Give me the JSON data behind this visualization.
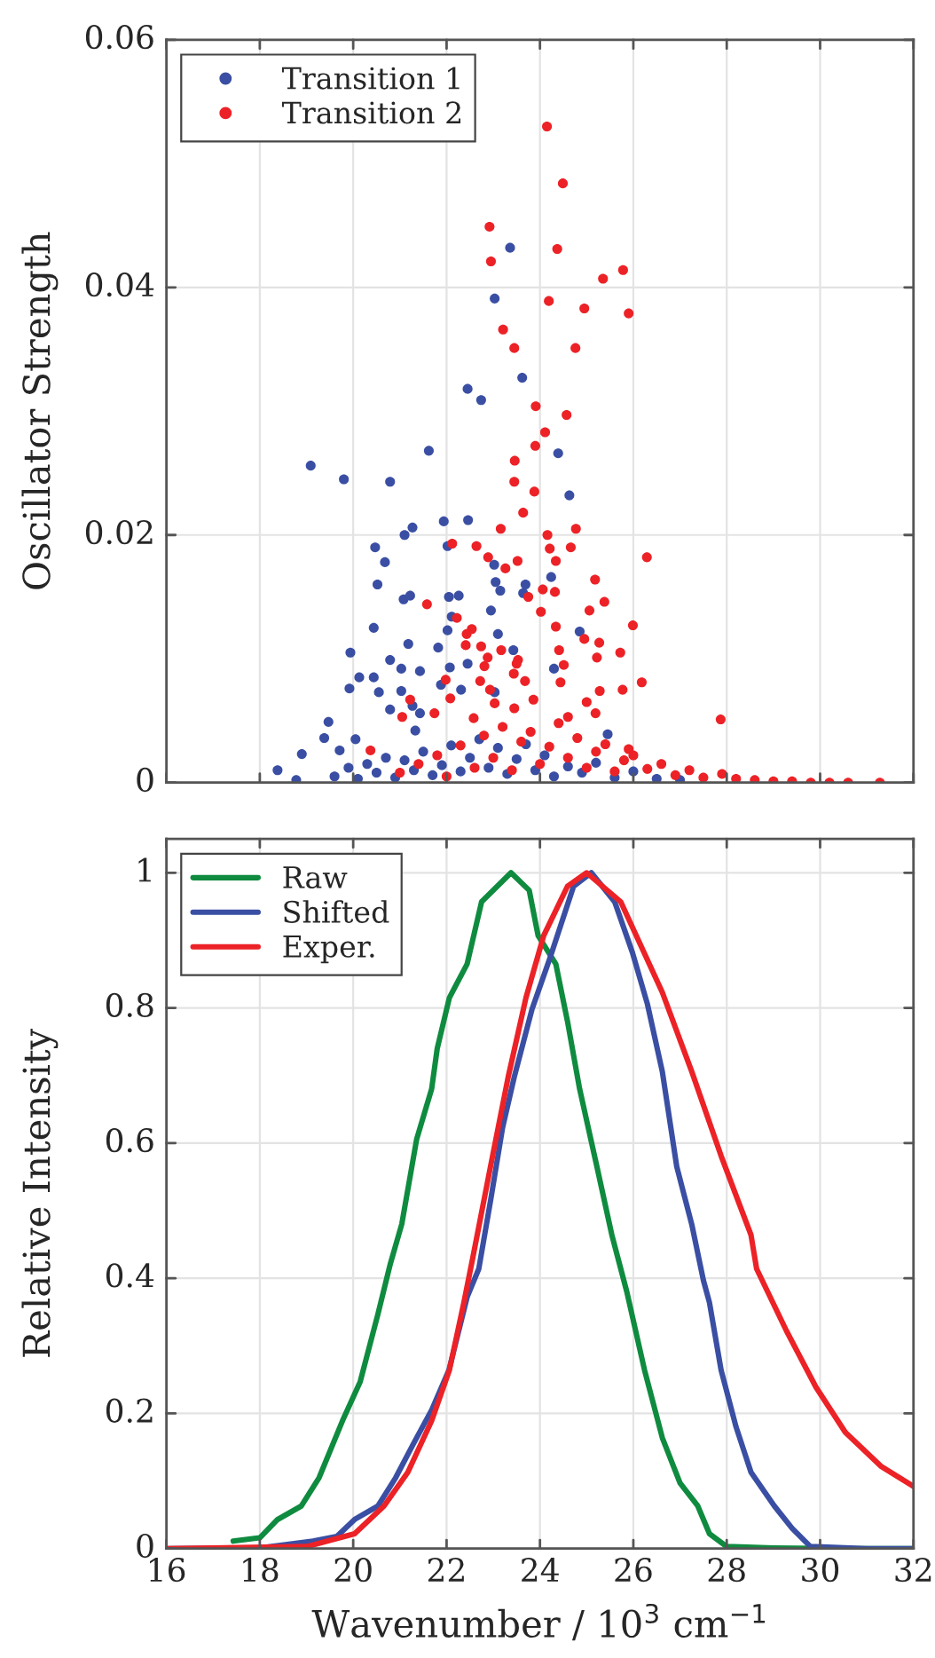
{
  "chart_data": [
    {
      "type": "scatter",
      "ylabel": "Oscillator Strength",
      "xlim": [
        16,
        32
      ],
      "xticks": [
        16,
        18,
        20,
        22,
        24,
        26,
        28,
        30,
        32
      ],
      "ylim": [
        0,
        0.06
      ],
      "yticks": [
        0,
        0.02,
        0.04,
        0.06
      ],
      "tick_labels": "y",
      "grid": true,
      "legend": "top left",
      "marker": "circle",
      "series": [
        {
          "name": "Transition 1",
          "color": "#3a4fa3",
          "x": [
            23.36,
            23.03,
            23.62,
            22.45,
            22.74,
            19.09,
            19.8,
            20.79,
            21.62,
            24.39,
            24.63,
            22.46,
            21.94,
            21.27,
            21.1,
            20.47,
            22.02,
            20.68,
            23.02,
            24.24,
            20.52,
            23.05,
            23.15,
            23.69,
            23.64,
            21.08,
            21.22,
            22.05,
            22.26,
            22.95,
            22.11,
            20.44,
            22.02,
            24.85,
            23.1,
            19.94,
            21.18,
            21.82,
            23.43,
            20.79,
            21.03,
            21.43,
            22.07,
            22.45,
            24.3,
            20.13,
            20.44,
            21.88,
            19.92,
            20.55,
            21.03,
            22.31,
            21.27,
            23.03,
            20.79,
            19.47,
            21.43,
            21.33,
            19.38,
            20.05,
            25.45,
            18.9,
            19.71,
            18.38,
            18.78,
            19.6,
            19.9,
            20.1,
            20.3,
            20.5,
            20.7,
            20.9,
            21.1,
            21.3,
            21.5,
            21.7,
            21.9,
            22.1,
            22.3,
            22.5,
            22.7,
            22.9,
            23.1,
            23.3,
            23.5,
            23.7,
            23.9,
            24.1,
            24.3,
            24.6,
            24.9,
            25.2,
            25.6,
            26.0,
            26.5,
            27.0
          ],
          "values": [
            0.0432,
            0.0391,
            0.0327,
            0.0318,
            0.0309,
            0.0256,
            0.0245,
            0.0243,
            0.0268,
            0.0266,
            0.0232,
            0.0212,
            0.0211,
            0.0206,
            0.02,
            0.019,
            0.0191,
            0.0178,
            0.0176,
            0.0166,
            0.016,
            0.0162,
            0.0155,
            0.016,
            0.0153,
            0.0148,
            0.0151,
            0.015,
            0.0151,
            0.0139,
            0.0134,
            0.0125,
            0.0123,
            0.0122,
            0.012,
            0.0105,
            0.0112,
            0.0109,
            0.0107,
            0.0099,
            0.0092,
            0.009,
            0.0093,
            0.0096,
            0.0092,
            0.0085,
            0.0085,
            0.0079,
            0.0076,
            0.0073,
            0.0074,
            0.0075,
            0.0062,
            0.0073,
            0.0059,
            0.0049,
            0.0056,
            0.0042,
            0.0036,
            0.0035,
            0.0039,
            0.0023,
            0.0026,
            0.001,
            0.0002,
            0.0005,
            0.0012,
            0.0003,
            0.0015,
            0.0008,
            0.002,
            0.0004,
            0.0018,
            0.001,
            0.0025,
            0.0006,
            0.0014,
            0.003,
            0.0009,
            0.002,
            0.0035,
            0.0012,
            0.0028,
            0.0007,
            0.0019,
            0.0031,
            0.001,
            0.0022,
            0.0005,
            0.0013,
            0.0008,
            0.0016,
            0.0004,
            0.0009,
            0.0003,
            0.0002
          ]
        },
        {
          "name": "Transition 2",
          "color": "#ec2227",
          "x": [
            24.15,
            24.49,
            22.92,
            24.37,
            22.95,
            25.78,
            25.35,
            24.19,
            24.95,
            25.9,
            23.21,
            23.45,
            24.76,
            23.91,
            24.57,
            24.11,
            23.9,
            23.46,
            23.45,
            23.88,
            23.64,
            23.16,
            24.77,
            24.16,
            22.12,
            22.64,
            24.21,
            24.66,
            26.29,
            22.89,
            23.26,
            23.52,
            24.34,
            23.75,
            24.06,
            24.32,
            25.18,
            21.58,
            25.38,
            25.06,
            24.02,
            22.22,
            25.99,
            24.34,
            22.54,
            22.43,
            24.95,
            25.27,
            22.41,
            22.74,
            23.17,
            24.41,
            25.72,
            25.22,
            22.88,
            23.53,
            22.81,
            23.5,
            24.51,
            23.44,
            21.98,
            22.72,
            23.68,
            24.44,
            26.18,
            22.93,
            25.28,
            25.77,
            21.22,
            22.08,
            23.86,
            25.0,
            23.03,
            23.45,
            25.19,
            21.05,
            21.74,
            22.58,
            24.6,
            27.87,
            20.37,
            25.9,
            21.0,
            21.4,
            21.8,
            22.0,
            22.3,
            22.6,
            22.8,
            23.0,
            23.2,
            23.4,
            23.6,
            23.8,
            24.0,
            24.2,
            24.4,
            24.6,
            24.8,
            25.0,
            25.2,
            25.4,
            25.6,
            25.8,
            26.0,
            26.3,
            26.6,
            26.9,
            27.2,
            27.5,
            27.9,
            28.2,
            28.6,
            29.0,
            29.4,
            29.8,
            30.2,
            30.6,
            31.28
          ],
          "values": [
            0.053,
            0.0484,
            0.0449,
            0.0431,
            0.0421,
            0.0414,
            0.0407,
            0.0389,
            0.0383,
            0.0379,
            0.0366,
            0.0351,
            0.0351,
            0.0304,
            0.0297,
            0.0283,
            0.0272,
            0.026,
            0.0243,
            0.0235,
            0.0218,
            0.0205,
            0.0205,
            0.02,
            0.0193,
            0.0191,
            0.0189,
            0.019,
            0.0182,
            0.0182,
            0.0173,
            0.0179,
            0.0179,
            0.015,
            0.0156,
            0.0154,
            0.0164,
            0.0144,
            0.0146,
            0.0139,
            0.0138,
            0.0133,
            0.0127,
            0.0126,
            0.0124,
            0.012,
            0.0116,
            0.0113,
            0.0111,
            0.011,
            0.0107,
            0.0107,
            0.0105,
            0.0101,
            0.0101,
            0.0099,
            0.0094,
            0.0096,
            0.0095,
            0.0088,
            0.0083,
            0.0082,
            0.0082,
            0.0081,
            0.0081,
            0.0075,
            0.0074,
            0.0075,
            0.0067,
            0.0068,
            0.0067,
            0.0065,
            0.0064,
            0.006,
            0.0056,
            0.0053,
            0.0056,
            0.0052,
            0.0053,
            0.0051,
            0.0026,
            0.0027,
            0.0008,
            0.0015,
            0.0022,
            0.0005,
            0.003,
            0.0012,
            0.0038,
            0.002,
            0.0045,
            0.001,
            0.0033,
            0.0041,
            0.0015,
            0.0029,
            0.0048,
            0.002,
            0.0036,
            0.0012,
            0.0025,
            0.0031,
            0.0009,
            0.0018,
            0.0022,
            0.0011,
            0.0015,
            0.0006,
            0.001,
            0.0004,
            0.0007,
            0.0003,
            0.0002,
            0.0001,
            0.0001,
            0,
            0,
            0,
            0
          ]
        }
      ]
    },
    {
      "type": "line",
      "xlabel": "Wavenumber / 10$^{3}$ cm$^{−1}$",
      "ylabel": "Relative Intensity",
      "xlim": [
        16,
        32
      ],
      "xticks": [
        16,
        18,
        20,
        22,
        24,
        26,
        28,
        30,
        32
      ],
      "ylim": [
        0,
        1.05
      ],
      "yticks": [
        0,
        0.2,
        0.4,
        0.6,
        0.8,
        1
      ],
      "grid": true,
      "legend": "top left",
      "line_style": "solid",
      "series": [
        {
          "name": "Raw",
          "color": "#0f8b3f",
          "x": [
            17.43,
            18.0,
            18.38,
            18.89,
            19.27,
            19.77,
            20.15,
            20.53,
            20.79,
            21.04,
            21.36,
            21.68,
            21.8,
            22.06,
            22.44,
            22.75,
            23.38,
            23.77,
            23.96,
            24.34,
            24.59,
            24.85,
            25.22,
            25.54,
            25.86,
            26.24,
            26.62,
            27.0,
            27.38,
            27.63,
            28.0,
            29.0,
            30.5,
            32
          ],
          "values": [
            0.011,
            0.016,
            0.043,
            0.063,
            0.105,
            0.189,
            0.247,
            0.347,
            0.42,
            0.48,
            0.606,
            0.68,
            0.74,
            0.815,
            0.865,
            0.957,
            1.0,
            0.974,
            0.907,
            0.865,
            0.78,
            0.68,
            0.565,
            0.464,
            0.38,
            0.264,
            0.164,
            0.097,
            0.063,
            0.022,
            0.003,
            0.001,
            0,
            0
          ]
        },
        {
          "name": "Shifted",
          "color": "#3a4fa3",
          "x": [
            16,
            18,
            19.14,
            19.65,
            20.03,
            20.53,
            20.91,
            21.29,
            21.68,
            22.05,
            22.44,
            22.69,
            22.94,
            23.2,
            23.45,
            23.83,
            24.21,
            24.72,
            25.1,
            25.6,
            25.98,
            26.3,
            26.62,
            26.93,
            27.25,
            27.5,
            27.63,
            27.88,
            28.2,
            28.52,
            29.02,
            29.4,
            29.79,
            31,
            32
          ],
          "values": [
            0,
            0.001,
            0.011,
            0.018,
            0.043,
            0.063,
            0.105,
            0.155,
            0.205,
            0.264,
            0.372,
            0.414,
            0.514,
            0.623,
            0.698,
            0.798,
            0.873,
            0.98,
            1.0,
            0.957,
            0.882,
            0.806,
            0.706,
            0.565,
            0.48,
            0.397,
            0.364,
            0.264,
            0.18,
            0.113,
            0.063,
            0.03,
            0.003,
            0,
            0
          ]
        },
        {
          "name": "Exper.",
          "color": "#ec2227",
          "x": [
            16,
            19.01,
            20.03,
            20.66,
            21.17,
            21.68,
            22.06,
            22.37,
            22.56,
            22.94,
            23.32,
            23.7,
            24.08,
            24.59,
            25.0,
            25.73,
            26.62,
            27.25,
            27.88,
            28.52,
            28.64,
            29.28,
            29.91,
            30.54,
            31.3,
            32
          ],
          "values": [
            0,
            0.003,
            0.022,
            0.063,
            0.113,
            0.189,
            0.264,
            0.364,
            0.43,
            0.565,
            0.698,
            0.815,
            0.907,
            0.98,
            1.0,
            0.957,
            0.823,
            0.706,
            0.581,
            0.464,
            0.414,
            0.322,
            0.239,
            0.172,
            0.122,
            0.092
          ]
        }
      ]
    }
  ]
}
